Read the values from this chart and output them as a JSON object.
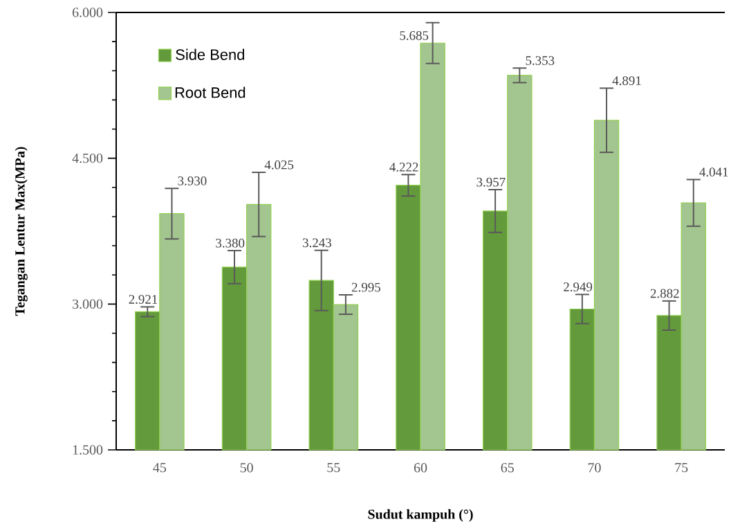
{
  "chart_data": {
    "type": "bar",
    "xlabel": "Sudut kampuh (°)",
    "ylabel": "Tegangan Lentur Max(MPa)",
    "categories": [
      "45",
      "50",
      "55",
      "60",
      "65",
      "70",
      "75"
    ],
    "series": [
      {
        "name": "Side Bend",
        "color": "#629a3c",
        "values": [
          2.921,
          3.38,
          3.243,
          4.222,
          3.957,
          2.949,
          2.882
        ],
        "errors": [
          0.05,
          0.17,
          0.31,
          0.11,
          0.22,
          0.15,
          0.15
        ],
        "value_labels": [
          "2.921",
          "3.380",
          "3.243",
          "4.222",
          "3.957",
          "2.949",
          "2.882"
        ]
      },
      {
        "name": "Root Bend",
        "color": "#a3c58f",
        "values": [
          3.93,
          4.025,
          2.995,
          5.685,
          5.353,
          4.891,
          4.041
        ],
        "errors": [
          0.26,
          0.33,
          0.1,
          0.21,
          0.075,
          0.33,
          0.24
        ],
        "value_labels": [
          "3.930",
          "4.025",
          "2.995",
          "5.685",
          "5.353",
          "4.891",
          "4.041"
        ]
      }
    ],
    "ylim": [
      1.5,
      6.0
    ],
    "yticks": [
      {
        "value": 1.5,
        "label": "1.500"
      },
      {
        "value": 3.0,
        "label": "3.000"
      },
      {
        "value": 4.5,
        "label": "4.500"
      },
      {
        "value": 6.0,
        "label": "6.000"
      }
    ],
    "grid": false,
    "legend": "top left"
  }
}
